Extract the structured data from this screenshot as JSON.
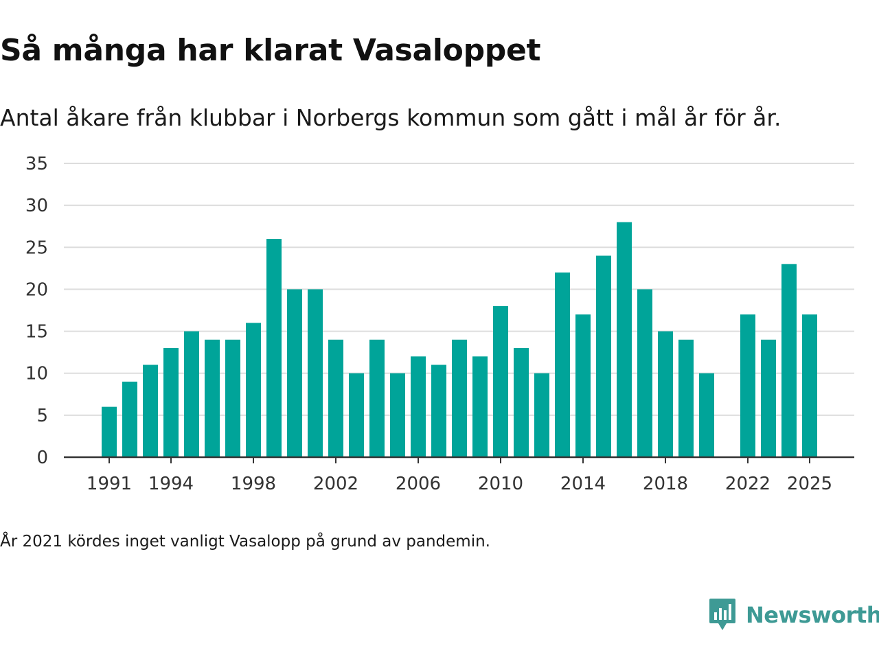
{
  "title": "Så många har klarat Vasaloppet",
  "subtitle": "Antal åkare från klubbar i Norbergs kommun som gått i mål år för år.",
  "note": "År 2021 kördes inget vanligt Vasalopp på grund av pandemin.",
  "brand": {
    "name": "Newsworthy",
    "icon": "newsworthy-logo-icon"
  },
  "colors": {
    "bar": "#00a499",
    "brand": "#3e9a95",
    "grid": "#dddddd",
    "axis": "#333333"
  },
  "chart_data": {
    "type": "bar",
    "title": "Så många har klarat Vasaloppet",
    "xlabel": "",
    "ylabel": "",
    "ylim": [
      0,
      35
    ],
    "yticks": [
      0,
      5,
      10,
      15,
      20,
      25,
      30,
      35
    ],
    "xtick_labels": [
      "1991",
      "1994",
      "1998",
      "2002",
      "2006",
      "2010",
      "2014",
      "2018",
      "2022",
      "2025"
    ],
    "categories": [
      1991,
      1992,
      1993,
      1994,
      1995,
      1996,
      1997,
      1998,
      1999,
      2000,
      2001,
      2002,
      2003,
      2004,
      2005,
      2006,
      2007,
      2008,
      2009,
      2010,
      2011,
      2012,
      2013,
      2014,
      2015,
      2016,
      2017,
      2018,
      2019,
      2020,
      2021,
      2022,
      2023,
      2024,
      2025
    ],
    "values": [
      6,
      9,
      11,
      13,
      15,
      14,
      14,
      16,
      26,
      20,
      20,
      14,
      10,
      14,
      10,
      12,
      11,
      14,
      12,
      18,
      13,
      10,
      22,
      17,
      24,
      28,
      20,
      15,
      14,
      10,
      null,
      17,
      14,
      23,
      17
    ],
    "grid": true,
    "legend": "none"
  }
}
